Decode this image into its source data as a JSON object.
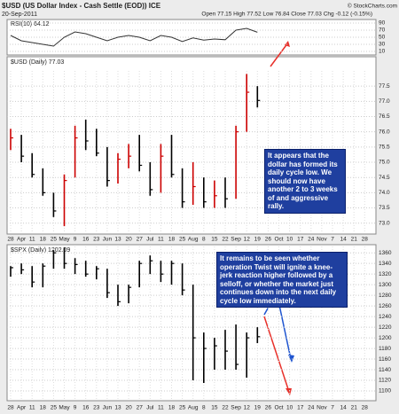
{
  "header": {
    "symbol_title": "$USD (US Dollar Index - Cash Settle (EOD)) ICE",
    "date": "20-Sep-2011",
    "quote": "Open 77.15 High 77.52 Low 76.84 Close 77.03 Chg -0.12 (-0.15%)",
    "credit": "© StockCharts.com"
  },
  "chart_data": [
    {
      "type": "line",
      "title": "RSI(10) 64.12",
      "color": "#333333",
      "ylim": [
        0,
        100
      ],
      "yticks": [
        10,
        30,
        50,
        70,
        90
      ],
      "grid": true,
      "values": [
        55,
        40,
        35,
        30,
        25,
        50,
        65,
        60,
        50,
        40,
        50,
        55,
        50,
        40,
        55,
        50,
        38,
        48,
        42,
        45,
        43,
        70,
        75,
        64.12,
        null,
        null,
        null,
        null,
        null,
        null,
        null,
        null,
        null,
        null
      ]
    },
    {
      "type": "hlc",
      "title": "$USD (Daily) 77.03",
      "up_color": "#cc0000",
      "down_color": "#000000",
      "categories": [
        "28",
        "Apr",
        "11",
        "18",
        "25",
        "May",
        "9",
        "16",
        "23",
        "Jun",
        "13",
        "20",
        "27",
        "Jul",
        "11",
        "18",
        "25",
        "Aug",
        "8",
        "15",
        "22",
        "Sep",
        "12",
        "19",
        "26",
        "Oct",
        "10",
        "17",
        "24",
        "Nov",
        "7",
        "14",
        "21",
        "28"
      ],
      "high": [
        76.1,
        75.9,
        75.3,
        74.8,
        74.0,
        74.6,
        76.2,
        76.4,
        76.1,
        75.5,
        75.3,
        75.6,
        75.9,
        75.0,
        75.6,
        75.9,
        74.8,
        75.0,
        74.5,
        74.4,
        74.5,
        76.2,
        77.9,
        77.5,
        null,
        null,
        null,
        null,
        null,
        null,
        null,
        null,
        null,
        null
      ],
      "low": [
        75.4,
        75.0,
        74.5,
        73.9,
        73.2,
        72.9,
        74.5,
        75.4,
        75.2,
        74.2,
        74.3,
        74.8,
        74.7,
        73.9,
        74.0,
        74.5,
        73.5,
        73.6,
        73.5,
        73.5,
        73.5,
        73.8,
        76.0,
        76.8,
        null,
        null,
        null,
        null,
        null,
        null,
        null,
        null,
        null,
        null
      ],
      "close": [
        75.8,
        75.2,
        74.6,
        74.0,
        73.4,
        74.4,
        75.8,
        75.7,
        75.3,
        74.4,
        75.1,
        75.2,
        74.9,
        74.1,
        75.2,
        74.6,
        73.7,
        74.2,
        73.7,
        73.9,
        73.8,
        76.0,
        77.3,
        77.03,
        null,
        null,
        null,
        null,
        null,
        null,
        null,
        null,
        null,
        null
      ],
      "ylim": [
        72.7,
        78.0
      ],
      "yticks": [
        {
          "value": 73,
          "label": "73.0"
        },
        73.5,
        {
          "value": 74,
          "label": "74.0"
        },
        74.5,
        {
          "value": 75,
          "label": "75.0"
        },
        75.5,
        {
          "value": 76,
          "label": "76.0"
        },
        76.5,
        {
          "value": 77,
          "label": "77.0"
        },
        77.5
      ],
      "grid": true,
      "annotation": "It appears that the dollar has formed its daily cycle low. We should now have another 2 to 3 weeks of and aggressive rally."
    },
    {
      "type": "hlc",
      "title": "$SPX (Daily) 1202.09",
      "up_color": "#000000",
      "down_color": "#000000",
      "categories": [
        "28",
        "Apr",
        "11",
        "18",
        "25",
        "May",
        "9",
        "16",
        "23",
        "Jun",
        "13",
        "20",
        "27",
        "Jul",
        "11",
        "18",
        "25",
        "Aug",
        "8",
        "15",
        "22",
        "Sep",
        "12",
        "19",
        "26",
        "Oct",
        "10",
        "17",
        "24",
        "Nov",
        "7",
        "14",
        "21",
        "28"
      ],
      "high": [
        1335,
        1340,
        1335,
        1340,
        1365,
        1370,
        1350,
        1345,
        1335,
        1330,
        1300,
        1300,
        1345,
        1355,
        1345,
        1345,
        1340,
        1300,
        1210,
        1200,
        1215,
        1225,
        1210,
        1220,
        null,
        null,
        null,
        null,
        null,
        null,
        null,
        null,
        null,
        null
      ],
      "low": [
        1315,
        1320,
        1295,
        1295,
        1330,
        1330,
        1320,
        1315,
        1310,
        1275,
        1260,
        1265,
        1295,
        1320,
        1305,
        1300,
        1280,
        1120,
        1115,
        1140,
        1140,
        1140,
        1125,
        1190,
        null,
        null,
        null,
        null,
        null,
        null,
        null,
        null,
        null,
        null
      ],
      "close": [
        1332,
        1328,
        1305,
        1335,
        1360,
        1340,
        1338,
        1320,
        1330,
        1285,
        1268,
        1295,
        1340,
        1345,
        1320,
        1340,
        1290,
        1200,
        1180,
        1185,
        1175,
        1150,
        1200,
        1202.09,
        null,
        null,
        null,
        null,
        null,
        null,
        null,
        null,
        null,
        null
      ],
      "ylim": [
        1085,
        1372
      ],
      "yticks": [
        1100,
        1120,
        1140,
        1160,
        1180,
        1200,
        1220,
        1240,
        1260,
        1280,
        1300,
        1320,
        1340,
        1360
      ],
      "grid": true,
      "annotation": "It remains to be seen whether operation Twist will ignite a knee-jerk reaction higher followed by a selloff, or whether the market just continues down into the next daily cycle low immediately."
    }
  ]
}
